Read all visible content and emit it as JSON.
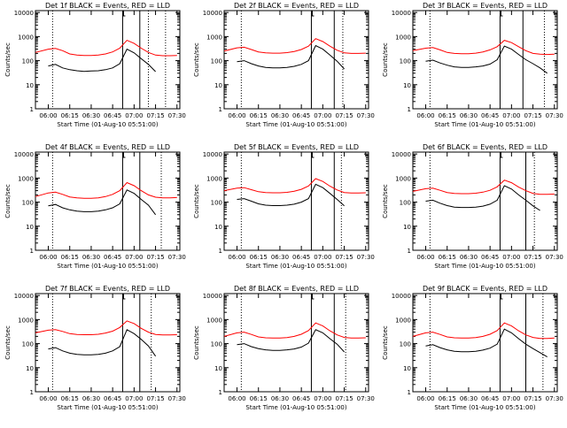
{
  "figure": {
    "x_axis_label": "Start Time (01-Aug-10 05:51:00)",
    "y_axis_label": "Counts/sec",
    "x_ticks": [
      "06:00",
      "06:15",
      "06:30",
      "06:45",
      "07:00",
      "07:15",
      "07:30"
    ],
    "y_ticks": [
      "1",
      "10",
      "100",
      "1000",
      "10000"
    ],
    "colors": {
      "events": "#000000",
      "lld": "#ff0000",
      "axes": "#000000"
    }
  },
  "chart_data": [
    {
      "type": "line",
      "title": "Det 1f BLACK = Events, RED = LLD",
      "xlim": [
        "05:51",
        "07:32"
      ],
      "ylim": [
        1,
        12000
      ],
      "yscale": "log",
      "markers": {
        "dotted": [
          "06:03",
          "07:10",
          "07:22"
        ],
        "solid": [
          "06:52",
          "07:04"
        ]
      },
      "series": [
        {
          "name": "Events",
          "color": "#000000",
          "x": [
            "06:00",
            "06:05",
            "06:10",
            "06:15",
            "06:20",
            "06:25",
            "06:30",
            "06:35",
            "06:40",
            "06:45",
            "06:50",
            "06:55",
            "07:00",
            "07:05",
            "07:10",
            "07:15"
          ],
          "y": [
            60,
            70,
            50,
            42,
            38,
            36,
            37,
            38,
            42,
            50,
            75,
            300,
            210,
            120,
            70,
            35
          ]
        },
        {
          "name": "LLD",
          "color": "#ff0000",
          "x": [
            "05:51",
            "06:00",
            "06:05",
            "06:10",
            "06:15",
            "06:20",
            "06:25",
            "06:30",
            "06:35",
            "06:40",
            "06:45",
            "06:50",
            "06:55",
            "07:00",
            "07:05",
            "07:10",
            "07:15",
            "07:20",
            "07:25",
            "07:30"
          ],
          "y": [
            220,
            300,
            320,
            260,
            190,
            170,
            165,
            165,
            170,
            190,
            230,
            330,
            700,
            520,
            330,
            220,
            170,
            160,
            160,
            165
          ]
        }
      ]
    },
    {
      "type": "line",
      "title": "Det 2f BLACK = Events, RED = LLD",
      "xlim": [
        "05:51",
        "07:32"
      ],
      "ylim": [
        1,
        12000
      ],
      "yscale": "log",
      "markers": {
        "dotted": [
          "06:03",
          "07:14"
        ],
        "solid": [
          "06:52",
          "07:08"
        ]
      },
      "series": [
        {
          "name": "Events",
          "color": "#000000",
          "x": [
            "06:00",
            "06:05",
            "06:10",
            "06:15",
            "06:20",
            "06:25",
            "06:30",
            "06:35",
            "06:40",
            "06:45",
            "06:50",
            "06:55",
            "07:00",
            "07:05",
            "07:10",
            "07:15"
          ],
          "y": [
            90,
            100,
            75,
            60,
            52,
            50,
            50,
            52,
            58,
            70,
            100,
            420,
            300,
            170,
            95,
            45
          ]
        },
        {
          "name": "LLD",
          "color": "#ff0000",
          "x": [
            "05:51",
            "06:00",
            "06:05",
            "06:10",
            "06:15",
            "06:20",
            "06:25",
            "06:30",
            "06:35",
            "06:40",
            "06:45",
            "06:50",
            "06:55",
            "07:00",
            "07:05",
            "07:10",
            "07:15",
            "07:20",
            "07:25",
            "07:30"
          ],
          "y": [
            250,
            340,
            360,
            290,
            230,
            210,
            205,
            205,
            215,
            240,
            290,
            400,
            820,
            620,
            400,
            270,
            210,
            200,
            200,
            205
          ]
        }
      ]
    },
    {
      "type": "line",
      "title": "Det 3f BLACK = Events, RED = LLD",
      "xlim": [
        "05:51",
        "07:32"
      ],
      "ylim": [
        1,
        12000
      ],
      "yscale": "log",
      "markers": {
        "dotted": [
          "06:03",
          "07:23"
        ],
        "solid": [
          "06:52",
          "07:08"
        ]
      },
      "series": [
        {
          "name": "Events",
          "color": "#000000",
          "x": [
            "06:00",
            "06:05",
            "06:10",
            "06:15",
            "06:20",
            "06:25",
            "06:30",
            "06:35",
            "06:40",
            "06:45",
            "06:50",
            "06:55",
            "07:00",
            "07:05",
            "07:10",
            "07:15",
            "07:20",
            "07:25"
          ],
          "y": [
            95,
            105,
            80,
            65,
            55,
            52,
            52,
            55,
            60,
            72,
            110,
            400,
            300,
            180,
            110,
            75,
            50,
            30
          ]
        },
        {
          "name": "LLD",
          "color": "#ff0000",
          "x": [
            "05:51",
            "06:00",
            "06:05",
            "06:10",
            "06:15",
            "06:20",
            "06:25",
            "06:30",
            "06:35",
            "06:40",
            "06:45",
            "06:50",
            "06:55",
            "07:00",
            "07:05",
            "07:10",
            "07:15",
            "07:20",
            "07:25",
            "07:30"
          ],
          "y": [
            260,
            330,
            350,
            280,
            220,
            200,
            195,
            195,
            205,
            230,
            280,
            380,
            700,
            560,
            380,
            260,
            200,
            185,
            180,
            185
          ]
        }
      ]
    },
    {
      "type": "line",
      "title": "Det 4f BLACK = Events, RED = LLD",
      "xlim": [
        "05:51",
        "07:32"
      ],
      "ylim": [
        1,
        12000
      ],
      "yscale": "log",
      "markers": {
        "dotted": [
          "06:03",
          "07:19"
        ],
        "solid": [
          "06:52",
          "07:04"
        ]
      },
      "series": [
        {
          "name": "Events",
          "color": "#000000",
          "x": [
            "06:00",
            "06:05",
            "06:10",
            "06:15",
            "06:20",
            "06:25",
            "06:30",
            "06:35",
            "06:40",
            "06:45",
            "06:50",
            "06:55",
            "07:00",
            "07:05",
            "07:10",
            "07:15"
          ],
          "y": [
            70,
            80,
            58,
            48,
            42,
            40,
            40,
            42,
            48,
            58,
            85,
            320,
            230,
            130,
            75,
            30
          ]
        },
        {
          "name": "LLD",
          "color": "#ff0000",
          "x": [
            "05:51",
            "06:00",
            "06:05",
            "06:10",
            "06:15",
            "06:20",
            "06:25",
            "06:30",
            "06:35",
            "06:40",
            "06:45",
            "06:50",
            "06:55",
            "07:00",
            "07:05",
            "07:10",
            "07:15",
            "07:20",
            "07:25",
            "07:30"
          ],
          "y": [
            170,
            240,
            260,
            210,
            165,
            150,
            145,
            145,
            150,
            170,
            210,
            300,
            650,
            480,
            300,
            200,
            160,
            150,
            150,
            155
          ]
        }
      ]
    },
    {
      "type": "line",
      "title": "Det 5f BLACK = Events, RED = LLD",
      "xlim": [
        "05:51",
        "07:32"
      ],
      "ylim": [
        1,
        12000
      ],
      "yscale": "log",
      "markers": {
        "dotted": [
          "06:03",
          "07:13"
        ],
        "solid": [
          "06:52",
          "07:08"
        ]
      },
      "series": [
        {
          "name": "Events",
          "color": "#000000",
          "x": [
            "06:00",
            "06:05",
            "06:10",
            "06:15",
            "06:20",
            "06:25",
            "06:30",
            "06:35",
            "06:40",
            "06:45",
            "06:50",
            "06:55",
            "07:00",
            "07:05",
            "07:10",
            "07:15"
          ],
          "y": [
            130,
            140,
            110,
            85,
            75,
            72,
            72,
            75,
            82,
            100,
            140,
            550,
            400,
            230,
            130,
            70
          ]
        },
        {
          "name": "LLD",
          "color": "#ff0000",
          "x": [
            "05:51",
            "06:00",
            "06:05",
            "06:10",
            "06:15",
            "06:20",
            "06:25",
            "06:30",
            "06:35",
            "06:40",
            "06:45",
            "06:50",
            "06:55",
            "07:00",
            "07:05",
            "07:10",
            "07:15",
            "07:20",
            "07:25",
            "07:30"
          ],
          "y": [
            300,
            380,
            400,
            330,
            270,
            250,
            245,
            245,
            255,
            285,
            340,
            470,
            950,
            720,
            460,
            320,
            250,
            240,
            240,
            245
          ]
        }
      ]
    },
    {
      "type": "line",
      "title": "Det 6f BLACK = Events, RED = LLD",
      "xlim": [
        "05:51",
        "07:32"
      ],
      "ylim": [
        1,
        12000
      ],
      "yscale": "log",
      "markers": {
        "dotted": [
          "06:03",
          "07:16"
        ],
        "solid": [
          "06:52",
          "07:10"
        ]
      },
      "series": [
        {
          "name": "Events",
          "color": "#000000",
          "x": [
            "06:00",
            "06:05",
            "06:10",
            "06:15",
            "06:20",
            "06:25",
            "06:30",
            "06:35",
            "06:40",
            "06:45",
            "06:50",
            "06:55",
            "07:00",
            "07:05",
            "07:10",
            "07:15",
            "07:20"
          ],
          "y": [
            110,
            120,
            90,
            72,
            62,
            60,
            60,
            62,
            68,
            82,
            120,
            480,
            350,
            200,
            120,
            70,
            45
          ]
        },
        {
          "name": "LLD",
          "color": "#ff0000",
          "x": [
            "05:51",
            "06:00",
            "06:05",
            "06:10",
            "06:15",
            "06:20",
            "06:25",
            "06:30",
            "06:35",
            "06:40",
            "06:45",
            "06:50",
            "06:55",
            "07:00",
            "07:05",
            "07:10",
            "07:15",
            "07:20",
            "07:25",
            "07:30"
          ],
          "y": [
            280,
            360,
            380,
            310,
            250,
            230,
            225,
            225,
            235,
            260,
            310,
            430,
            820,
            640,
            420,
            300,
            230,
            210,
            210,
            215
          ]
        }
      ]
    },
    {
      "type": "line",
      "title": "Det 7f BLACK = Events, RED = LLD",
      "xlim": [
        "05:51",
        "07:32"
      ],
      "ylim": [
        1,
        12000
      ],
      "yscale": "log",
      "markers": {
        "dotted": [
          "06:03",
          "07:12"
        ],
        "solid": [
          "06:52",
          "07:04"
        ]
      },
      "series": [
        {
          "name": "Events",
          "color": "#000000",
          "x": [
            "06:00",
            "06:05",
            "06:10",
            "06:15",
            "06:20",
            "06:25",
            "06:30",
            "06:35",
            "06:40",
            "06:45",
            "06:50",
            "06:55",
            "07:00",
            "07:05",
            "07:10",
            "07:15"
          ],
          "y": [
            60,
            68,
            50,
            40,
            36,
            34,
            34,
            36,
            40,
            50,
            75,
            380,
            260,
            150,
            80,
            30
          ]
        },
        {
          "name": "LLD",
          "color": "#ff0000",
          "x": [
            "05:51",
            "06:00",
            "06:05",
            "06:10",
            "06:15",
            "06:20",
            "06:25",
            "06:30",
            "06:35",
            "06:40",
            "06:45",
            "06:50",
            "06:55",
            "07:00",
            "07:05",
            "07:10",
            "07:15",
            "07:20",
            "07:25",
            "07:30"
          ],
          "y": [
            280,
            360,
            380,
            320,
            260,
            240,
            235,
            235,
            245,
            275,
            330,
            470,
            880,
            680,
            430,
            300,
            240,
            230,
            230,
            235
          ]
        }
      ]
    },
    {
      "type": "line",
      "title": "Det 8f BLACK = Events, RED = LLD",
      "xlim": [
        "05:51",
        "07:32"
      ],
      "ylim": [
        1,
        12000
      ],
      "yscale": "log",
      "markers": {
        "dotted": [
          "06:03",
          "07:16"
        ],
        "solid": [
          "06:52",
          "07:08"
        ]
      },
      "series": [
        {
          "name": "Events",
          "color": "#000000",
          "x": [
            "06:00",
            "06:05",
            "06:10",
            "06:15",
            "06:20",
            "06:25",
            "06:30",
            "06:35",
            "06:40",
            "06:45",
            "06:50",
            "06:55",
            "07:00",
            "07:05",
            "07:10",
            "07:15"
          ],
          "y": [
            90,
            100,
            75,
            62,
            55,
            52,
            52,
            55,
            60,
            72,
            105,
            380,
            280,
            160,
            95,
            45
          ]
        },
        {
          "name": "LLD",
          "color": "#ff0000",
          "x": [
            "05:51",
            "06:00",
            "06:05",
            "06:10",
            "06:15",
            "06:20",
            "06:25",
            "06:30",
            "06:35",
            "06:40",
            "06:45",
            "06:50",
            "06:55",
            "07:00",
            "07:05",
            "07:10",
            "07:15",
            "07:20",
            "07:25",
            "07:30"
          ],
          "y": [
            200,
            280,
            300,
            240,
            190,
            175,
            170,
            170,
            178,
            200,
            245,
            350,
            720,
            540,
            340,
            230,
            180,
            170,
            170,
            175
          ]
        }
      ]
    },
    {
      "type": "line",
      "title": "Det 9f BLACK = Events, RED = LLD",
      "xlim": [
        "05:51",
        "07:32"
      ],
      "ylim": [
        1,
        12000
      ],
      "yscale": "log",
      "markers": {
        "dotted": [
          "06:03",
          "07:22"
        ],
        "solid": [
          "06:52",
          "07:10"
        ]
      },
      "series": [
        {
          "name": "Events",
          "color": "#000000",
          "x": [
            "06:00",
            "06:05",
            "06:10",
            "06:15",
            "06:20",
            "06:25",
            "06:30",
            "06:35",
            "06:40",
            "06:45",
            "06:50",
            "06:55",
            "07:00",
            "07:05",
            "07:10",
            "07:15",
            "07:20",
            "07:25"
          ],
          "y": [
            80,
            90,
            68,
            55,
            48,
            46,
            46,
            48,
            54,
            65,
            95,
            400,
            280,
            160,
            95,
            62,
            42,
            28
          ]
        },
        {
          "name": "LLD",
          "color": "#ff0000",
          "x": [
            "05:51",
            "06:00",
            "06:05",
            "06:10",
            "06:15",
            "06:20",
            "06:25",
            "06:30",
            "06:35",
            "06:40",
            "06:45",
            "06:50",
            "06:55",
            "07:00",
            "07:05",
            "07:10",
            "07:15",
            "07:20",
            "07:25",
            "07:30"
          ],
          "y": [
            200,
            280,
            300,
            240,
            190,
            175,
            170,
            170,
            178,
            200,
            245,
            350,
            720,
            540,
            340,
            230,
            180,
            165,
            165,
            170
          ]
        }
      ]
    }
  ]
}
